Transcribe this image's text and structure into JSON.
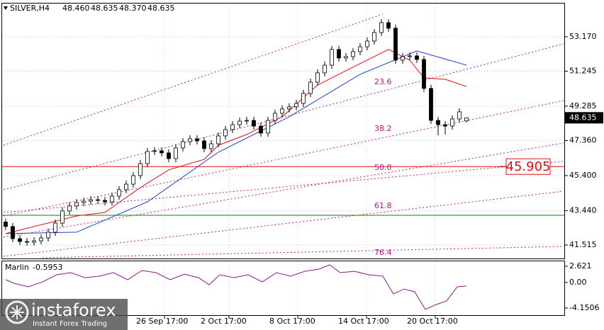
{
  "chart_data": {
    "type": "candlestick",
    "title": "SILVER,H4",
    "header_values": [
      "48.460",
      "48.635",
      "48.370",
      "48.635"
    ],
    "ohlc": [
      [
        42.8,
        43.0,
        42.35,
        42.55
      ],
      [
        42.55,
        42.75,
        41.67,
        41.87
      ],
      [
        41.87,
        42.07,
        41.51,
        41.71
      ],
      [
        41.71,
        41.91,
        41.47,
        41.67
      ],
      [
        41.67,
        41.95,
        41.47,
        41.75
      ],
      [
        41.75,
        42.11,
        41.55,
        41.91
      ],
      [
        41.91,
        42.43,
        41.71,
        42.23
      ],
      [
        42.23,
        42.94,
        42.03,
        42.74
      ],
      [
        42.74,
        43.62,
        42.54,
        43.42
      ],
      [
        43.42,
        43.9,
        43.22,
        43.7
      ],
      [
        43.7,
        44.09,
        43.5,
        43.89
      ],
      [
        43.89,
        44.17,
        43.69,
        43.97
      ],
      [
        43.97,
        44.25,
        43.77,
        44.05
      ],
      [
        44.05,
        44.25,
        43.81,
        44.01
      ],
      [
        44.01,
        44.21,
        43.73,
        43.93
      ],
      [
        43.93,
        44.45,
        43.73,
        44.25
      ],
      [
        44.25,
        44.81,
        44.05,
        44.61
      ],
      [
        44.61,
        45.12,
        44.41,
        44.92
      ],
      [
        44.92,
        45.6,
        44.72,
        45.4
      ],
      [
        45.4,
        46.27,
        45.2,
        46.07
      ],
      [
        46.07,
        46.95,
        45.87,
        46.75
      ],
      [
        46.75,
        46.99,
        46.55,
        46.79
      ],
      [
        46.79,
        46.99,
        46.47,
        46.67
      ],
      [
        46.67,
        46.87,
        46.15,
        46.35
      ],
      [
        46.35,
        47.15,
        46.15,
        46.95
      ],
      [
        46.95,
        47.5,
        46.75,
        47.3
      ],
      [
        47.3,
        47.66,
        47.1,
        47.46
      ],
      [
        47.46,
        47.66,
        47.14,
        47.34
      ],
      [
        47.34,
        47.54,
        46.71,
        46.91
      ],
      [
        46.91,
        47.38,
        46.71,
        47.18
      ],
      [
        47.18,
        47.82,
        46.98,
        47.62
      ],
      [
        47.62,
        48.18,
        47.42,
        47.98
      ],
      [
        47.98,
        48.45,
        47.78,
        48.25
      ],
      [
        48.25,
        48.65,
        48.05,
        48.45
      ],
      [
        48.45,
        48.69,
        48.25,
        48.49
      ],
      [
        48.49,
        48.69,
        47.97,
        48.17
      ],
      [
        48.17,
        48.37,
        47.58,
        47.78
      ],
      [
        47.78,
        48.69,
        47.58,
        48.49
      ],
      [
        48.49,
        49.09,
        48.29,
        48.89
      ],
      [
        48.89,
        49.33,
        48.69,
        49.13
      ],
      [
        49.13,
        49.45,
        48.93,
        49.25
      ],
      [
        49.25,
        49.64,
        49.05,
        49.44
      ],
      [
        49.44,
        50.2,
        49.24,
        50.0
      ],
      [
        50.0,
        50.83,
        49.8,
        50.63
      ],
      [
        50.63,
        51.35,
        50.43,
        51.15
      ],
      [
        51.15,
        51.78,
        50.95,
        51.58
      ],
      [
        51.58,
        52.66,
        51.38,
        52.46
      ],
      [
        52.46,
        52.66,
        51.78,
        51.98
      ],
      [
        51.98,
        52.26,
        51.78,
        52.06
      ],
      [
        52.06,
        52.54,
        51.86,
        52.34
      ],
      [
        52.34,
        52.81,
        52.14,
        52.61
      ],
      [
        52.61,
        53.13,
        52.41,
        52.93
      ],
      [
        52.93,
        53.61,
        52.73,
        53.41
      ],
      [
        53.41,
        54.16,
        53.21,
        53.96
      ],
      [
        53.96,
        54.16,
        53.45,
        53.65
      ],
      [
        53.65,
        53.85,
        51.66,
        51.86
      ],
      [
        51.86,
        52.26,
        51.66,
        52.06
      ],
      [
        52.06,
        52.3,
        51.86,
        52.1
      ],
      [
        52.1,
        52.3,
        51.7,
        51.9
      ],
      [
        51.9,
        52.1,
        50.08,
        50.28
      ],
      [
        50.28,
        50.48,
        48.29,
        48.49
      ],
      [
        48.49,
        48.69,
        47.65,
        48.25
      ],
      [
        48.25,
        48.45,
        47.7,
        48.17
      ],
      [
        48.17,
        48.77,
        47.97,
        48.57
      ],
      [
        48.57,
        49.17,
        48.37,
        48.97
      ],
      [
        48.46,
        48.635,
        48.37,
        48.635
      ]
    ],
    "ma": [
      {
        "color": "#1f3fd6",
        "x": [
          0,
          10,
          20,
          30,
          40,
          50,
          58,
          65
        ],
        "values": [
          42.15,
          42.23,
          43.93,
          46.71,
          48.69,
          51.07,
          52.38,
          51.58
        ]
      },
      {
        "color": "#e01010",
        "x": [
          0,
          10,
          14,
          19,
          23,
          28,
          30,
          34,
          39,
          44,
          49,
          54,
          57,
          59,
          62,
          65
        ],
        "values": [
          42.15,
          43.14,
          43.34,
          44.73,
          45.72,
          46.31,
          47.1,
          47.7,
          48.69,
          50.47,
          51.47,
          52.46,
          51.86,
          50.87,
          50.79,
          50.39
        ]
      }
    ],
    "xticks": [
      {
        "value": 22.4,
        "label": "26 Sep 17:00"
      },
      {
        "value": 31.5,
        "label": "2 Oct 17:00"
      },
      {
        "value": 41.2,
        "label": "8 Oct 17:00"
      },
      {
        "value": 50.9,
        "label": "14 Oct 17:00"
      },
      {
        "value": 60.6,
        "label": "20 Oct 17:00"
      }
    ],
    "xlim": [
      0,
      65
    ],
    "ylim": [
      40.76,
      55.07
    ],
    "yticks": [
      41.515,
      {
        "value": 43.44,
        "label": "43.440"
      },
      {
        "value": 45.4,
        "label": "45.400"
      },
      {
        "value": 47.36,
        "label": "47.360"
      },
      49.285,
      51.245,
      {
        "value": 53.17,
        "label": "53.170"
      }
    ],
    "grid": true,
    "price_level": 45.905,
    "fib_labels": [
      "23.6",
      "38.2",
      "50.0",
      "61.8",
      "76.4"
    ],
    "indicator": {
      "name": "Marlin",
      "color": "#8b1a8b",
      "axis": "y2",
      "x": [
        0,
        1.2,
        3.2,
        5.2,
        7.2,
        9.2,
        11.2,
        13.2,
        15.2,
        17.2,
        19.2,
        21.2,
        23.2,
        25.2,
        27.2,
        28.7,
        30.2,
        32.2,
        34.2,
        36.2,
        38.2,
        40.2,
        42.2,
        44.2,
        45.7,
        47.2,
        49.2,
        51.2,
        53.2,
        54.7,
        56.2,
        57.7,
        59.2,
        60.7,
        62.2,
        63.7,
        65
      ],
      "values": [
        0.44,
        -0.14,
        -0.71,
        0.09,
        1.24,
        1.59,
        0.78,
        1.01,
        1.59,
        0.44,
        1.93,
        1.59,
        0.44,
        1.35,
        0.78,
        -0.37,
        1.24,
        0.78,
        1.24,
        0.09,
        1.59,
        1.01,
        1.81,
        2.16,
        2.85,
        1.59,
        1.81,
        1.24,
        1.01,
        -1.86,
        -1.06,
        -1.52,
        -4.38,
        -3.58,
        -3.0,
        -0.71,
        -0.5953
      ]
    },
    "y2lim": [
      -5.41,
      3.54
    ],
    "y2ticks": [
      2.621,
      {
        "value": 0,
        "label": "0.00"
      },
      -4.1506
    ],
    "watermark": {
      "brand": "instaforex",
      "tagline": "Instant Forex Trading"
    }
  }
}
